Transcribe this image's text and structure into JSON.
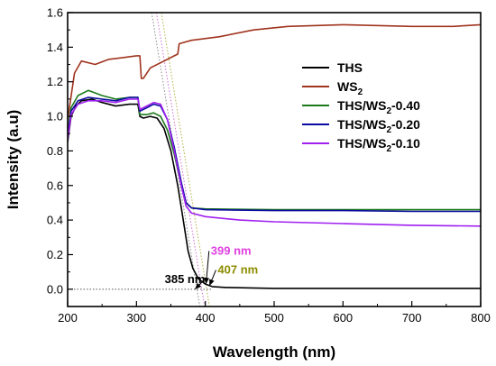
{
  "chart_data": {
    "type": "line",
    "xlabel": "Wavelength (nm)",
    "ylabel": "Intensity (a.u)",
    "xlim": [
      200,
      800
    ],
    "ylim": [
      -0.1,
      1.6
    ],
    "xticks": [
      "200",
      "300",
      "400",
      "500",
      "600",
      "700",
      "800"
    ],
    "yticks": [
      "0.0",
      "0.2",
      "0.4",
      "0.6",
      "0.8",
      "1.0",
      "1.2",
      "1.4",
      "1.6"
    ],
    "grid": false,
    "legend_position": "right",
    "series": [
      {
        "name": "THS",
        "sub": "",
        "suffix": "",
        "color": "#000000",
        "points": [
          [
            200,
            0.85
          ],
          [
            205,
            1.0
          ],
          [
            212,
            1.06
          ],
          [
            220,
            1.09
          ],
          [
            235,
            1.1
          ],
          [
            250,
            1.08
          ],
          [
            270,
            1.06
          ],
          [
            290,
            1.07
          ],
          [
            302,
            1.07
          ],
          [
            305,
            1.0
          ],
          [
            310,
            0.99
          ],
          [
            320,
            1.0
          ],
          [
            330,
            0.99
          ],
          [
            340,
            0.93
          ],
          [
            350,
            0.8
          ],
          [
            360,
            0.6
          ],
          [
            368,
            0.4
          ],
          [
            375,
            0.22
          ],
          [
            382,
            0.12
          ],
          [
            390,
            0.06
          ],
          [
            400,
            0.03
          ],
          [
            410,
            0.015
          ],
          [
            430,
            0.01
          ],
          [
            500,
            0.005
          ],
          [
            600,
            0.005
          ],
          [
            800,
            0.005
          ]
        ]
      },
      {
        "name": "WS",
        "sub": "2",
        "suffix": "",
        "color": "#A0341F",
        "points": [
          [
            200,
            0.98
          ],
          [
            210,
            1.25
          ],
          [
            220,
            1.32
          ],
          [
            240,
            1.3
          ],
          [
            260,
            1.33
          ],
          [
            280,
            1.34
          ],
          [
            300,
            1.35
          ],
          [
            305,
            1.35
          ],
          [
            307,
            1.22
          ],
          [
            310,
            1.22
          ],
          [
            320,
            1.28
          ],
          [
            340,
            1.32
          ],
          [
            355,
            1.35
          ],
          [
            360,
            1.36
          ],
          [
            362,
            1.42
          ],
          [
            380,
            1.44
          ],
          [
            420,
            1.46
          ],
          [
            470,
            1.5
          ],
          [
            520,
            1.52
          ],
          [
            600,
            1.53
          ],
          [
            700,
            1.52
          ],
          [
            760,
            1.52
          ],
          [
            800,
            1.53
          ]
        ]
      },
      {
        "name": "THS/WS",
        "sub": "2",
        "suffix": "-0.40",
        "color": "#1C7A1C",
        "points": [
          [
            200,
            0.9
          ],
          [
            205,
            1.05
          ],
          [
            215,
            1.12
          ],
          [
            230,
            1.15
          ],
          [
            250,
            1.12
          ],
          [
            270,
            1.1
          ],
          [
            290,
            1.11
          ],
          [
            302,
            1.11
          ],
          [
            305,
            1.01
          ],
          [
            315,
            1.01
          ],
          [
            325,
            1.02
          ],
          [
            335,
            1.0
          ],
          [
            345,
            0.92
          ],
          [
            355,
            0.78
          ],
          [
            365,
            0.6
          ],
          [
            372,
            0.5
          ],
          [
            380,
            0.47
          ],
          [
            400,
            0.465
          ],
          [
            500,
            0.46
          ],
          [
            600,
            0.46
          ],
          [
            700,
            0.46
          ],
          [
            800,
            0.46
          ]
        ]
      },
      {
        "name": "THS/WS",
        "sub": "2",
        "suffix": "-0.20",
        "color": "#0B0BA0",
        "points": [
          [
            200,
            0.88
          ],
          [
            205,
            1.03
          ],
          [
            215,
            1.09
          ],
          [
            230,
            1.11
          ],
          [
            250,
            1.1
          ],
          [
            270,
            1.09
          ],
          [
            290,
            1.11
          ],
          [
            302,
            1.11
          ],
          [
            305,
            1.03
          ],
          [
            315,
            1.05
          ],
          [
            325,
            1.07
          ],
          [
            335,
            1.06
          ],
          [
            345,
            0.98
          ],
          [
            355,
            0.82
          ],
          [
            365,
            0.62
          ],
          [
            372,
            0.5
          ],
          [
            380,
            0.47
          ],
          [
            400,
            0.46
          ],
          [
            500,
            0.455
          ],
          [
            600,
            0.455
          ],
          [
            700,
            0.45
          ],
          [
            800,
            0.45
          ]
        ]
      },
      {
        "name": "THS/WS",
        "sub": "2",
        "suffix": "-0.10",
        "color": "#A020F0",
        "points": [
          [
            200,
            0.86
          ],
          [
            205,
            1.01
          ],
          [
            215,
            1.07
          ],
          [
            230,
            1.09
          ],
          [
            250,
            1.09
          ],
          [
            270,
            1.08
          ],
          [
            290,
            1.1
          ],
          [
            302,
            1.1
          ],
          [
            305,
            1.04
          ],
          [
            315,
            1.06
          ],
          [
            325,
            1.08
          ],
          [
            335,
            1.07
          ],
          [
            345,
            0.98
          ],
          [
            355,
            0.8
          ],
          [
            365,
            0.6
          ],
          [
            372,
            0.48
          ],
          [
            380,
            0.44
          ],
          [
            400,
            0.42
          ],
          [
            450,
            0.4
          ],
          [
            500,
            0.39
          ],
          [
            600,
            0.38
          ],
          [
            700,
            0.37
          ],
          [
            800,
            0.365
          ]
        ]
      }
    ],
    "baseline": {
      "y": 0.0,
      "x_range": [
        200,
        410
      ]
    },
    "tangent_lines": [
      {
        "x1": 322,
        "y1": 1.6,
        "x2": 392,
        "y2": -0.1,
        "color": "#888888"
      },
      {
        "x1": 329,
        "y1": 1.6,
        "x2": 399,
        "y2": -0.1,
        "color": "#D070D0"
      },
      {
        "x1": 336,
        "y1": 1.6,
        "x2": 406,
        "y2": -0.1,
        "color": "#B0B040"
      }
    ],
    "annotations": [
      {
        "text": "385 nm",
        "color": "#000000",
        "x": 341,
        "y": 0.035,
        "arrow_to": [
          385,
          0.0
        ]
      },
      {
        "text": "399 nm",
        "color": "#E040E0",
        "x": 408,
        "y": 0.2,
        "arrow_to": [
          401,
          0.03
        ]
      },
      {
        "text": "407 nm",
        "color": "#8C8C00",
        "x": 418,
        "y": 0.09,
        "arrow_to": [
          406,
          0.02
        ]
      }
    ]
  }
}
